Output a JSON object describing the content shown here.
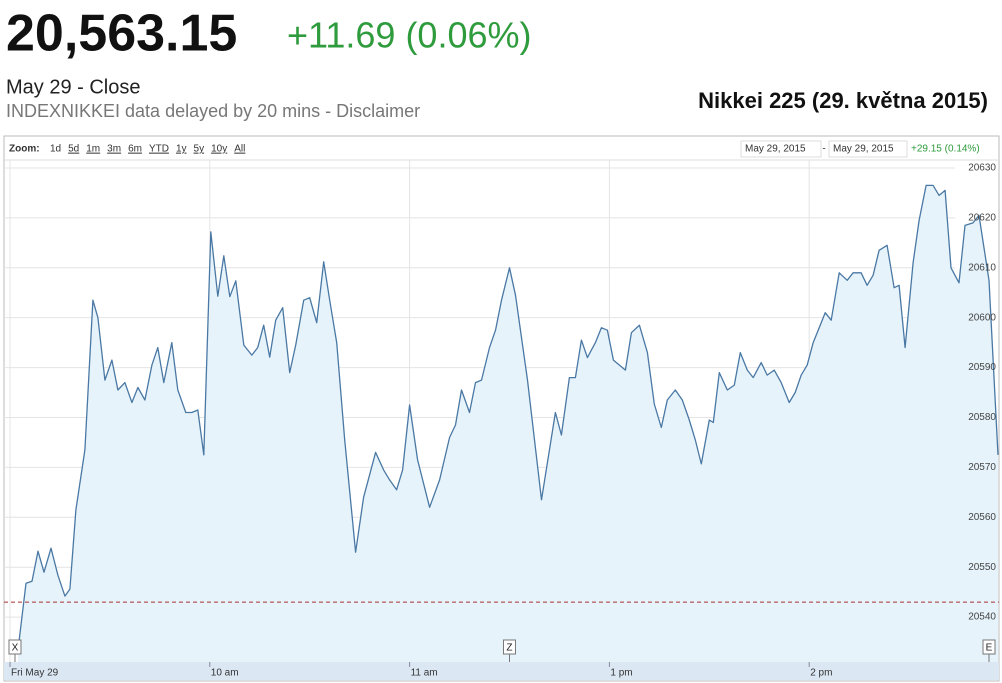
{
  "header": {
    "price": "20,563.15",
    "change": "+11.69 (0.06%)",
    "status": "May 29 - Close",
    "source": "INDEXNIKKEI data delayed by 20 mins - Disclaimer"
  },
  "toolbar": {
    "zoom_label": "Zoom:",
    "zoom_options": [
      "1d",
      "5d",
      "1m",
      "3m",
      "6m",
      "YTD",
      "1y",
      "5y",
      "10y",
      "All"
    ],
    "range_start": "May 29, 2015",
    "range_separator": "-",
    "range_end": "May 29, 2015",
    "range_change": "+29.15 (0.14%)"
  },
  "chart_data": {
    "type": "area",
    "title": "Nikkei 225 (29. května 2015)",
    "color": "#4a78a4",
    "fill": "#e6f3fa",
    "grid": true,
    "xlim": [
      -1.8,
      297
    ],
    "ylim": [
      20531,
      20631.6
    ],
    "xticks": [
      {
        "value": 0,
        "label": "Fri May 29"
      },
      {
        "value": 60,
        "label": "10 am"
      },
      {
        "value": 120,
        "label": "11 am"
      },
      {
        "value": 180,
        "label": "1 pm"
      },
      {
        "value": 240,
        "label": "2 pm"
      }
    ],
    "yticks": [
      20540,
      20550,
      20560,
      20570,
      20580,
      20590,
      20600,
      20610,
      20620,
      20630
    ],
    "reference_line": {
      "value": 20543,
      "color": "#a33"
    },
    "flags": [
      {
        "x": 1.5,
        "label": "X"
      },
      {
        "x": 150,
        "label": "Z"
      },
      {
        "x": 294,
        "label": "E"
      }
    ],
    "x": [
      2.4,
      4.8,
      6.6,
      8.4,
      10.2,
      12.3,
      14.4,
      16.5,
      18,
      19.8,
      22.5,
      24.9,
      26.4,
      28.5,
      30.6,
      32.4,
      34.5,
      36.6,
      38.4,
      40.5,
      42.6,
      44.4,
      46.2,
      48.6,
      50.4,
      52.8,
      54.6,
      56.4,
      58.2,
      60.3,
      62.4,
      64.2,
      66,
      67.8,
      70.2,
      72.6,
      74.4,
      76.2,
      78,
      79.8,
      81.9,
      84,
      85.8,
      88.2,
      90,
      92.1,
      94.2,
      96,
      98.1,
      100.5,
      103.8,
      106.2,
      109.8,
      112.2,
      114,
      116.1,
      117.9,
      120,
      122.4,
      126,
      129,
      132,
      133.8,
      135.6,
      138,
      139.8,
      141.6,
      144,
      145.8,
      147.6,
      150,
      151.8,
      155.4,
      159.6,
      163.8,
      165.6,
      168,
      169.8,
      171.6,
      173.4,
      175.8,
      177.6,
      179.4,
      181.2,
      183,
      184.8,
      186.6,
      189,
      191.4,
      193.5,
      195.6,
      197.4,
      199.8,
      201.9,
      204,
      205.8,
      207.6,
      210,
      211.2,
      213,
      215.4,
      217.5,
      219.3,
      221.4,
      223.2,
      225.6,
      227.4,
      229.5,
      231.6,
      234,
      235.8,
      237.6,
      239.4,
      241.2,
      243,
      244.8,
      246.6,
      249,
      251.4,
      253.2,
      255.6,
      257.4,
      259.2,
      261,
      263.4,
      265.5,
      267,
      268.8,
      271.2,
      273,
      275.1,
      277.2,
      279,
      280.8,
      282.6,
      285,
      286.8,
      289.2,
      291,
      294,
      296.7
    ],
    "values": [
      20533.4,
      20546.8,
      20547.2,
      20553.2,
      20549,
      20553.8,
      20548.4,
      20544.2,
      20545.6,
      20561.5,
      20573.5,
      20603.5,
      20600,
      20587.5,
      20591.5,
      20585.5,
      20587,
      20583,
      20586,
      20583.5,
      20590.5,
      20594,
      20587,
      20595,
      20585.5,
      20581,
      20581,
      20581.5,
      20572.5,
      20617.2,
      20604.3,
      20612.4,
      20604.2,
      20607.4,
      20594.5,
      20592.5,
      20594,
      20598.5,
      20592.1,
      20599.5,
      20602,
      20589,
      20594.5,
      20603.5,
      20604,
      20599,
      20611.2,
      20603.5,
      20595,
      20575.5,
      20553,
      20564,
      20573,
      20569.5,
      20567.5,
      20565.5,
      20569.5,
      20582.5,
      20571.5,
      20562,
      20567.5,
      20576,
      20578.5,
      20585.5,
      20581,
      20587,
      20587.5,
      20594,
      20597.5,
      20603.5,
      20610,
      20604.5,
      20587.5,
      20563.5,
      20581,
      20576.5,
      20588,
      20588,
      20595.5,
      20592,
      20595,
      20598,
      20597.5,
      20591.5,
      20590.5,
      20589.5,
      20597,
      20598.5,
      20593,
      20582.7,
      20578,
      20583.5,
      20585.5,
      20583.5,
      20579.5,
      20575.5,
      20570.7,
      20579.5,
      20579,
      20589,
      20585.5,
      20586.5,
      20593,
      20589.5,
      20588,
      20591,
      20588.5,
      20589.5,
      20587,
      20583,
      20585,
      20588.5,
      20590.5,
      20595,
      20598,
      20601,
      20599.5,
      20609,
      20607.5,
      20609,
      20609,
      20606.5,
      20608.5,
      20613.5,
      20614.5,
      20606,
      20606.5,
      20594,
      20611,
      20619.5,
      20626.5,
      20626.5,
      20624.5,
      20625.5,
      20610,
      20607,
      20618.5,
      20619,
      20620.5,
      20607.5,
      20572.5
    ]
  }
}
